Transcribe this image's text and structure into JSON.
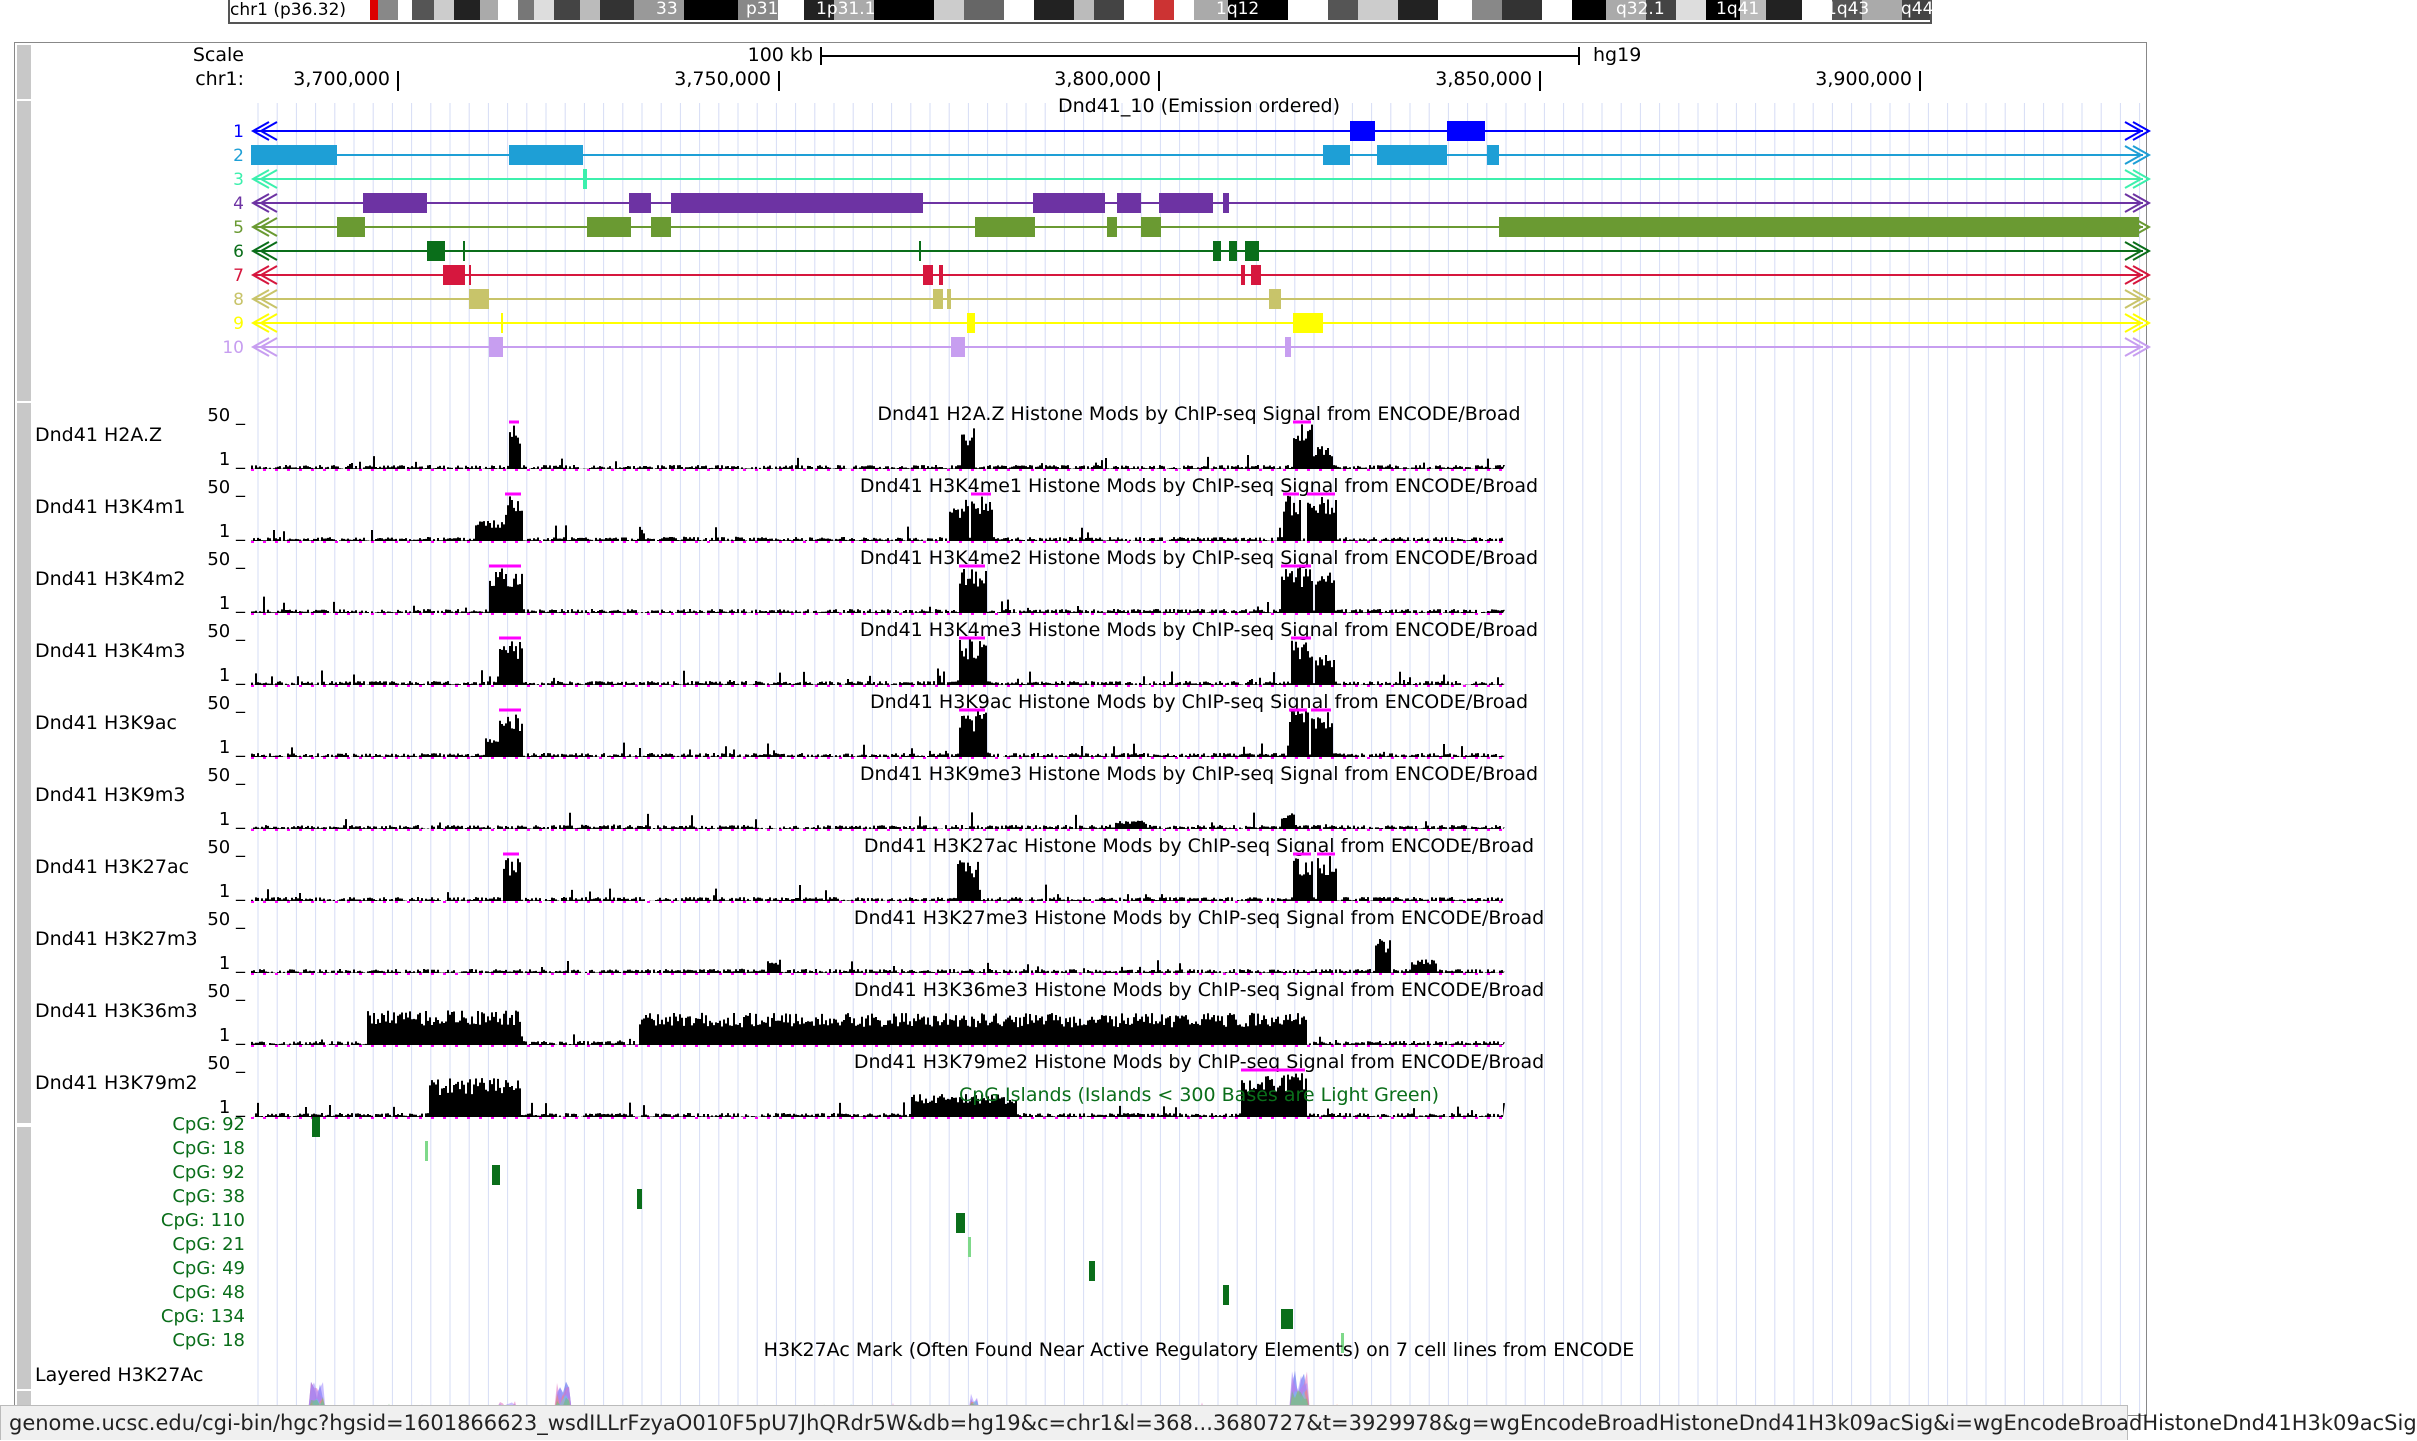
{
  "ideogram": {
    "label": "chr1 (p36.32)",
    "bands": [
      "33",
      "p31.3",
      "1p31.1",
      "1q12",
      "q32.1",
      "1q41",
      "1q43",
      "q44"
    ]
  },
  "ruler": {
    "scale_label": "Scale",
    "chr_label": "chr1:",
    "scale_text": "100 kb",
    "assembly": "hg19",
    "ticks": [
      "3,700,000",
      "3,750,000",
      "3,800,000",
      "3,850,000",
      "3,900,000"
    ]
  },
  "chromhmm": {
    "title": "Dnd41_10 (Emission ordered)",
    "states": [
      {
        "label": "1",
        "color": "#0000ff"
      },
      {
        "label": "2",
        "color": "#1e9fd6"
      },
      {
        "label": "3",
        "color": "#3cf0ad"
      },
      {
        "label": "4",
        "color": "#6d33a3"
      },
      {
        "label": "5",
        "color": "#6a9a32"
      },
      {
        "label": "6",
        "color": "#0a6e1a"
      },
      {
        "label": "7",
        "color": "#d6173e"
      },
      {
        "label": "8",
        "color": "#c8c46a"
      },
      {
        "label": "9",
        "color": "#ffff00"
      },
      {
        "label": "10",
        "color": "#c79ef0"
      }
    ]
  },
  "signal_tracks": [
    {
      "name": "Dnd41 H2A.Z",
      "title": "Dnd41 H2A.Z Histone Mods by ChIP-seq Signal from ENCODE/Broad",
      "max": "50 _",
      "min": "1 _"
    },
    {
      "name": "Dnd41 H3K4m1",
      "title": "Dnd41 H3K4me1 Histone Mods by ChIP-seq Signal from ENCODE/Broad",
      "max": "50 _",
      "min": "1 _"
    },
    {
      "name": "Dnd41 H3K4m2",
      "title": "Dnd41 H3K4me2 Histone Mods by ChIP-seq Signal from ENCODE/Broad",
      "max": "50 _",
      "min": "1 _"
    },
    {
      "name": "Dnd41 H3K4m3",
      "title": "Dnd41 H3K4me3 Histone Mods by ChIP-seq Signal from ENCODE/Broad",
      "max": "50 _",
      "min": "1 _"
    },
    {
      "name": "Dnd41 H3K9ac",
      "title": "Dnd41 H3K9ac Histone Mods by ChIP-seq Signal from ENCODE/Broad",
      "max": "50 _",
      "min": "1 _"
    },
    {
      "name": "Dnd41 H3K9m3",
      "title": "Dnd41 H3K9me3 Histone Mods by ChIP-seq Signal from ENCODE/Broad",
      "max": "50 _",
      "min": "1 _"
    },
    {
      "name": "Dnd41 H3K27ac",
      "title": "Dnd41 H3K27ac Histone Mods by ChIP-seq Signal from ENCODE/Broad",
      "max": "50 _",
      "min": "1 _"
    },
    {
      "name": "Dnd41 H3K27m3",
      "title": "Dnd41 H3K27me3 Histone Mods by ChIP-seq Signal from ENCODE/Broad",
      "max": "50 _",
      "min": "1 _"
    },
    {
      "name": "Dnd41 H3K36m3",
      "title": "Dnd41 H3K36me3 Histone Mods by ChIP-seq Signal from ENCODE/Broad",
      "max": "50 _",
      "min": "1 _"
    },
    {
      "name": "Dnd41 H3K79m2",
      "title": "Dnd41 H3K79me2 Histone Mods by ChIP-seq Signal from ENCODE/Broad",
      "max": "50 _",
      "min": "1 _"
    }
  ],
  "cpg": {
    "title": "CpG Islands (Islands < 300 Bases are Light Green)",
    "items": [
      "CpG: 92",
      "CpG: 18",
      "CpG: 92",
      "CpG: 38",
      "CpG: 110",
      "CpG: 21",
      "CpG: 49",
      "CpG: 48",
      "CpG: 134",
      "CpG: 18"
    ],
    "color_dark": "#0a6e1a",
    "color_light": "#7fd98a"
  },
  "layered": {
    "name": "Layered H3K27Ac",
    "title": "H3K27Ac Mark (Often Found Near Active Regulatory Elements) on 7 cell lines from ENCODE"
  },
  "status_url": "genome.ucsc.edu/cgi-bin/hgc?hgsid=1601866623_wsdILLrFzyaO010F5pU7JhQRdr5W&db=hg19&c=chr1&l=368...3680727&t=3929978&g=wgEncodeBroadHistoneDnd41H3k09acSig&i=wgEncodeBroadHistoneDnd41H3k09acSig",
  "colors": {
    "signal": "#000000",
    "clip": "#ff00ff",
    "grid": "#d6dcf5"
  }
}
